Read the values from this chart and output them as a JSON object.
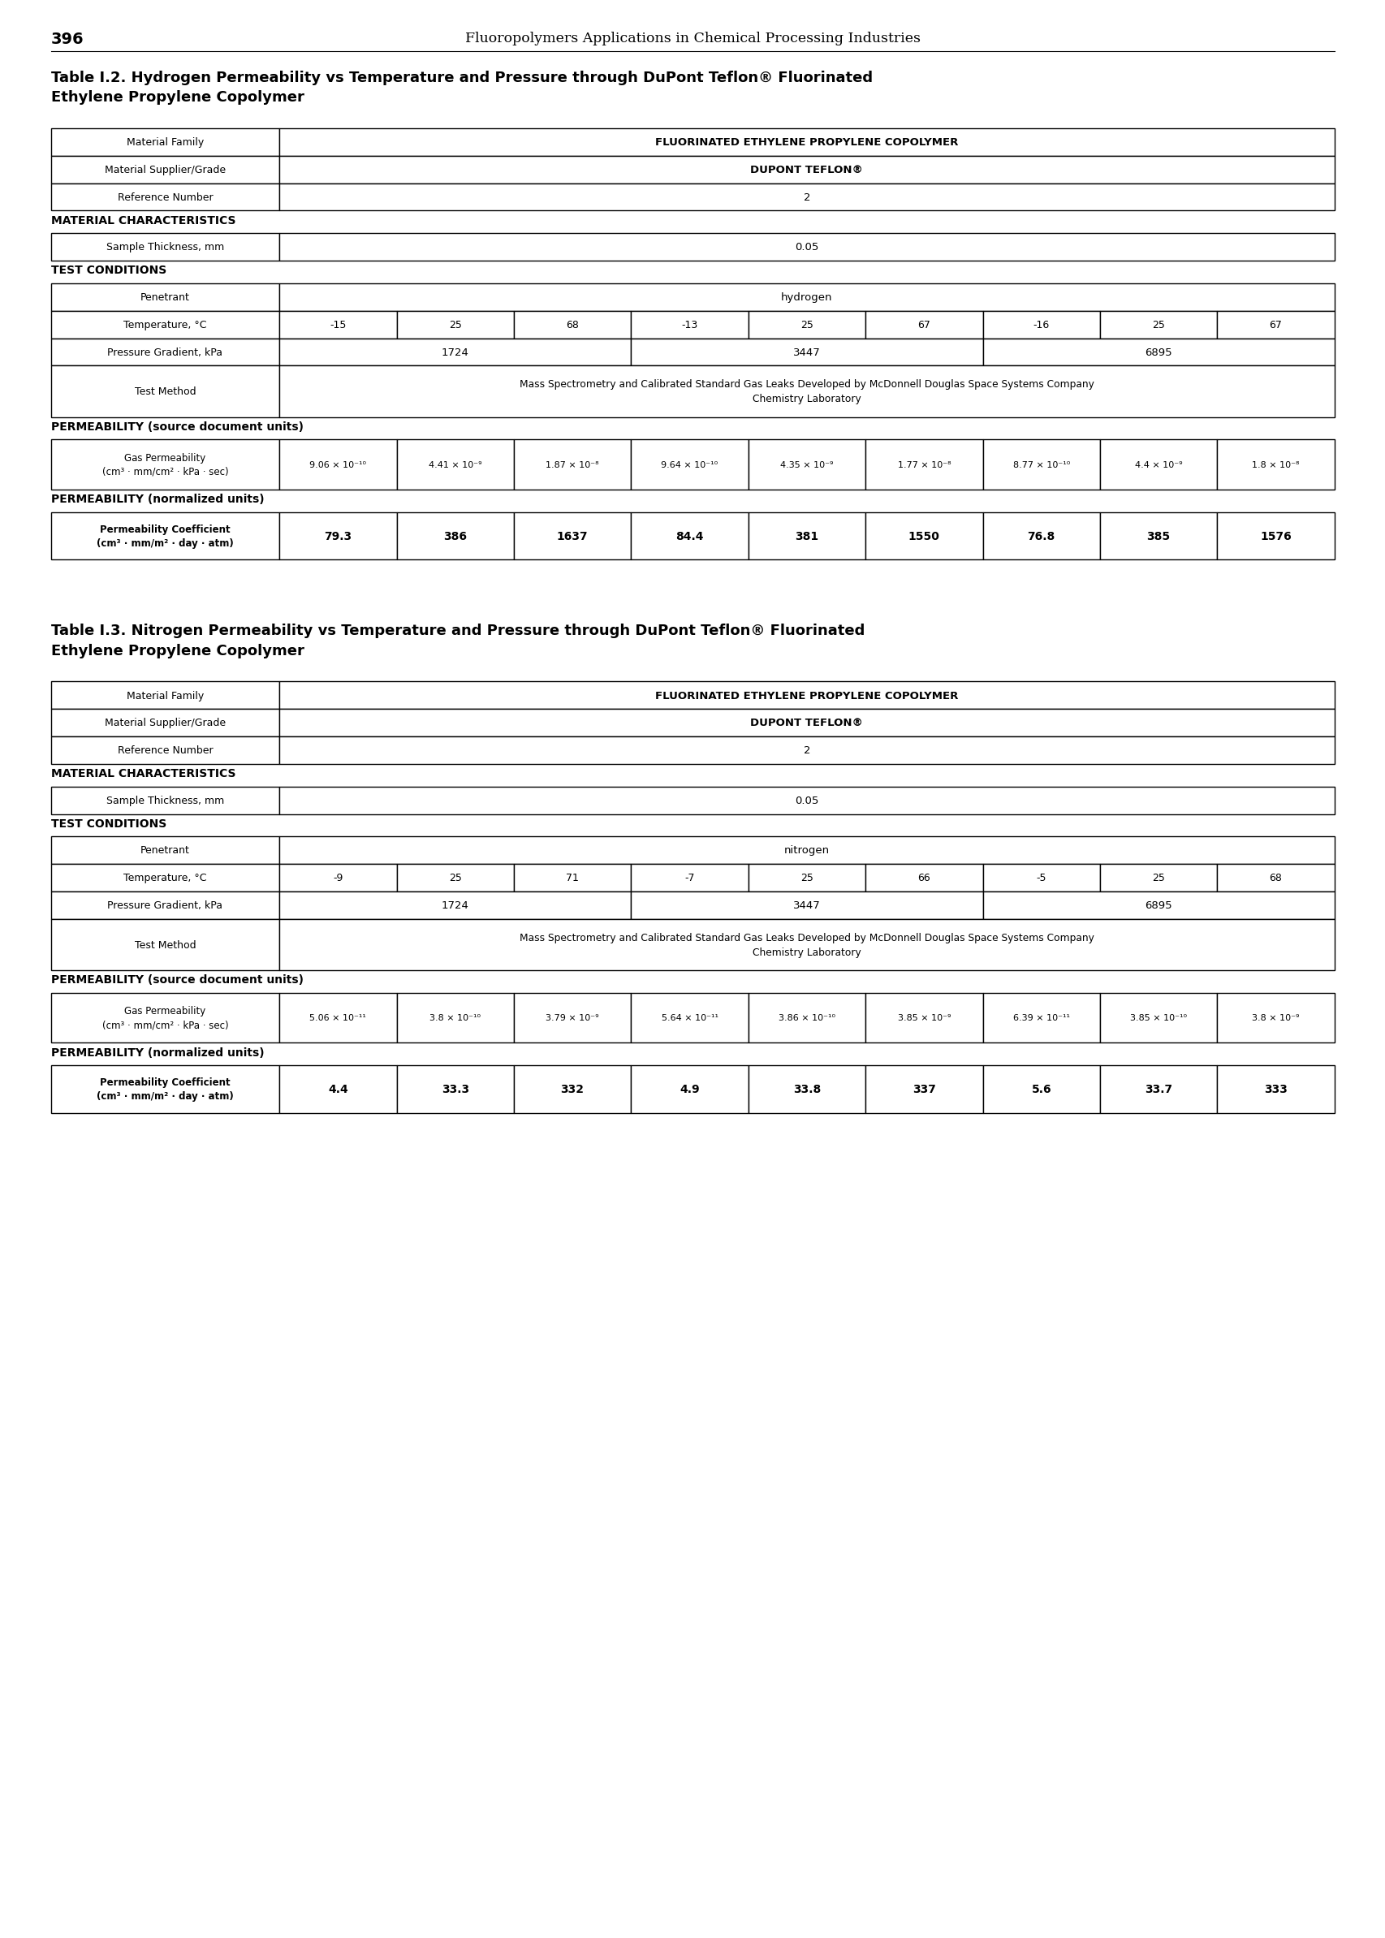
{
  "page_number": "396",
  "header_title": "Fluoropolymers Applications in Chemical Processing Industries",
  "background_color": "#ffffff",
  "text_color": "#000000",
  "table1_title_bold": "Table I.2.",
  "table1_title_rest": " Hydrogen Permeability vs Temperature and Pressure through DuPont Teflon® Fluorinated\nEthylene Propylene Copolymer",
  "table1": {
    "material_family": "FLUORINATED ETHYLENE PROPYLENE COPOLYMER",
    "material_supplier": "DUPONT TEFLON®",
    "reference_number": "2",
    "sample_thickness": "0.05",
    "penetrant": "hydrogen",
    "temperature": [
      "-15",
      "25",
      "68",
      "-13",
      "25",
      "67",
      "-16",
      "25",
      "67"
    ],
    "pressure_labels": [
      "1724",
      "3447",
      "6895"
    ],
    "test_method": "Mass Spectrometry and Calibrated Standard Gas Leaks Developed by McDonnell Douglas Space Systems Company\nChemistry Laboratory",
    "gas_permeability": [
      "9.06 × 10⁻¹⁰",
      "4.41 × 10⁻⁹",
      "1.87 × 10⁻⁸",
      "9.64 × 10⁻¹⁰",
      "4.35 × 10⁻⁹",
      "1.77 × 10⁻⁸",
      "8.77 × 10⁻¹⁰",
      "4.4 × 10⁻⁹",
      "1.8 × 10⁻⁸"
    ],
    "permeability_coeff": [
      "79.3",
      "386",
      "1637",
      "84.4",
      "381",
      "1550",
      "76.8",
      "385",
      "1576"
    ]
  },
  "table2_title_bold": "Table I.3.",
  "table2_title_rest": " Nitrogen Permeability vs Temperature and Pressure through DuPont Teflon® Fluorinated\nEthylene Propylene Copolymer",
  "table2": {
    "material_family": "FLUORINATED ETHYLENE PROPYLENE COPOLYMER",
    "material_supplier": "DUPONT TEFLON®",
    "reference_number": "2",
    "sample_thickness": "0.05",
    "penetrant": "nitrogen",
    "temperature": [
      "-9",
      "25",
      "71",
      "-7",
      "25",
      "66",
      "-5",
      "25",
      "68"
    ],
    "pressure_labels": [
      "1724",
      "3447",
      "6895"
    ],
    "test_method": "Mass Spectrometry and Calibrated Standard Gas Leaks Developed by McDonnell Douglas Space Systems Company\nChemistry Laboratory",
    "gas_permeability": [
      "5.06 × 10⁻¹¹",
      "3.8 × 10⁻¹⁰",
      "3.79 × 10⁻⁹",
      "5.64 × 10⁻¹¹",
      "3.86 × 10⁻¹⁰",
      "3.85 × 10⁻⁹",
      "6.39 × 10⁻¹¹",
      "3.85 × 10⁻¹⁰",
      "3.8 × 10⁻⁹"
    ],
    "permeability_coeff": [
      "4.4",
      "33.3",
      "332",
      "4.9",
      "33.8",
      "337",
      "5.6",
      "33.7",
      "333"
    ]
  }
}
